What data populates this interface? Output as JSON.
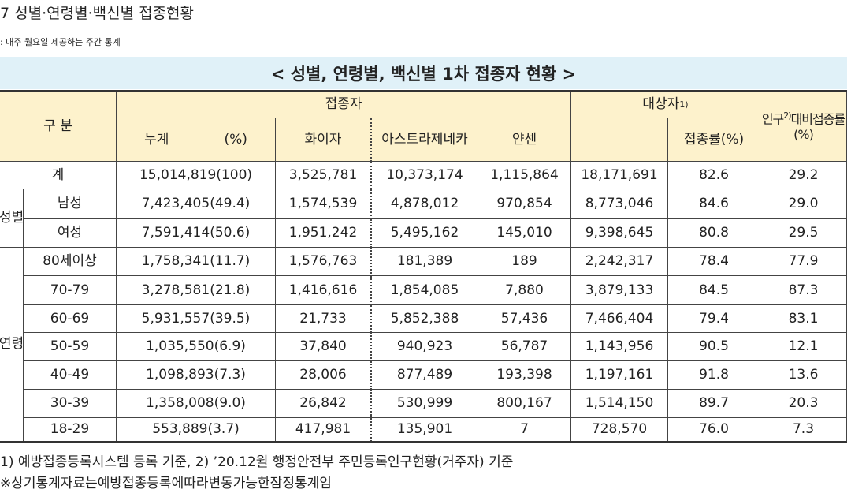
{
  "header": {
    "title": "7  성별·연령별·백신별 접종현황",
    "note": ": 매주 월요일 제공하는 주간 통계"
  },
  "table": {
    "title": "< 성별, 연령별, 백신별 1차 접종자 현황 >",
    "head": {
      "group": "구 분",
      "vaccinated": "접종자",
      "target": "대상자",
      "target_note": "1)",
      "total": "누계",
      "total_pct": "(%)",
      "pfizer": "화이자",
      "az": "아스트라제네카",
      "janssen": "얀센",
      "rate": "접종률(%)",
      "pop_a": "인구",
      "pop_note": "2)",
      "pop_b": "대비접종률",
      "pop_pct": "(%)"
    },
    "groups": [
      "성별",
      "연령"
    ],
    "rows": [
      [
        "계",
        "15,014,819(100)",
        "3,525,781",
        "10,373,174",
        "1,115,864",
        "18,171,691",
        "82.6",
        "29.2"
      ],
      [
        "남성",
        "7,423,405(49.4)",
        "1,574,539",
        "4,878,012",
        "970,854",
        "8,773,046",
        "84.6",
        "29.0"
      ],
      [
        "여성",
        "7,591,414(50.6)",
        "1,951,242",
        "5,495,162",
        "145,010",
        "9,398,645",
        "80.8",
        "29.5"
      ],
      [
        "80세이상",
        "1,758,341(11.7)",
        "1,576,763",
        "181,389",
        "189",
        "2,242,317",
        "78.4",
        "77.9"
      ],
      [
        "70-79",
        "3,278,581(21.8)",
        "1,416,616",
        "1,854,085",
        "7,880",
        "3,879,133",
        "84.5",
        "87.3"
      ],
      [
        "60-69",
        "5,931,557(39.5)",
        "21,733",
        "5,852,388",
        "57,436",
        "7,466,404",
        "79.4",
        "83.1"
      ],
      [
        "50-59",
        "1,035,550(6.9)",
        "37,840",
        "940,923",
        "56,787",
        "1,143,956",
        "90.5",
        "12.1"
      ],
      [
        "40-49",
        "1,098,893(7.3)",
        "28,006",
        "877,489",
        "193,398",
        "1,197,161",
        "91.8",
        "13.6"
      ],
      [
        "30-39",
        "1,358,008(9.0)",
        "26,842",
        "530,999",
        "800,167",
        "1,514,150",
        "89.7",
        "20.3"
      ],
      [
        "18-29",
        "553,889(3.7)",
        "417,981",
        "135,901",
        "7",
        "728,570",
        "76.0",
        "7.3"
      ]
    ]
  },
  "footnotes": [
    "1) 예방접종등록시스템 등록 기준,   2) ’20.12월 행정안전부 주민등록인구현황(거주자) 기준",
    "※상기통계자료는예방접종등록에따라변동가능한잠정통계임"
  ]
}
